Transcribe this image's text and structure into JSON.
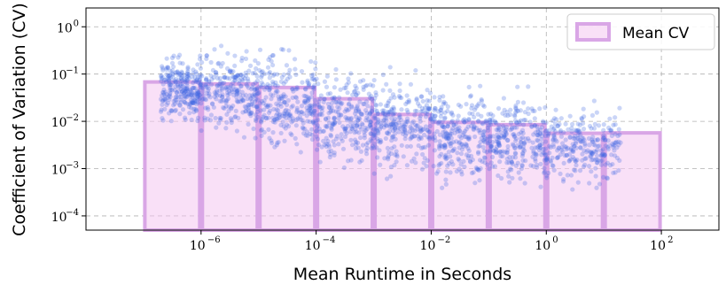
{
  "chart_data": {
    "type": "scatter",
    "xlabel": "Mean Runtime in Seconds",
    "ylabel": "Coefficient of Variation (CV)",
    "xscale": "log",
    "yscale": "log",
    "xlim": [
      1e-08,
      1000.0
    ],
    "ylim": [
      5e-05,
      2.5
    ],
    "x_ticks": [
      {
        "value": 1e-06,
        "base": "10",
        "exp": "−6"
      },
      {
        "value": 0.0001,
        "base": "10",
        "exp": "−4"
      },
      {
        "value": 0.01,
        "base": "10",
        "exp": "−2"
      },
      {
        "value": 1,
        "base": "10",
        "exp": "0"
      },
      {
        "value": 100,
        "base": "10",
        "exp": "2"
      }
    ],
    "y_ticks": [
      {
        "value": 0.0001,
        "base": "10",
        "exp": "−4"
      },
      {
        "value": 0.001,
        "base": "10",
        "exp": "−3"
      },
      {
        "value": 0.01,
        "base": "10",
        "exp": "−2"
      },
      {
        "value": 0.1,
        "base": "10",
        "exp": "−1"
      },
      {
        "value": 1,
        "base": "10",
        "exp": "0"
      }
    ],
    "grid": true,
    "legend_position": "top-right",
    "series": [
      {
        "name": "Mean CV",
        "type": "bar",
        "color": "#f4c6f1",
        "edge_color": "#d9a6e6",
        "bins": [
          {
            "x0": 1e-07,
            "x1": 1e-06,
            "value": 0.068
          },
          {
            "x0": 1e-06,
            "x1": 1e-05,
            "value": 0.062
          },
          {
            "x0": 1e-05,
            "x1": 0.0001,
            "value": 0.052
          },
          {
            "x0": 0.0001,
            "x1": 0.001,
            "value": 0.03
          },
          {
            "x0": 0.001,
            "x1": 0.01,
            "value": 0.014
          },
          {
            "x0": 0.01,
            "x1": 0.1,
            "value": 0.0095
          },
          {
            "x0": 0.1,
            "x1": 1,
            "value": 0.0085
          },
          {
            "x0": 1,
            "x1": 10,
            "value": 0.0056
          },
          {
            "x0": 10,
            "x1": 100,
            "value": 0.0057
          }
        ]
      },
      {
        "name": "",
        "type": "scatter",
        "color": "#4169e1",
        "point_clusters": [
          {
            "x_range": [
              2e-07,
              1e-06
            ],
            "cv_center": 0.05,
            "cv_spread_decades": 0.6
          },
          {
            "x_range": [
              1e-06,
              1e-05
            ],
            "cv_center": 0.04,
            "cv_spread_decades": 0.75
          },
          {
            "x_range": [
              1e-05,
              0.0001
            ],
            "cv_center": 0.025,
            "cv_spread_decades": 0.9
          },
          {
            "x_range": [
              0.0001,
              0.001
            ],
            "cv_center": 0.012,
            "cv_spread_decades": 0.9
          },
          {
            "x_range": [
              0.001,
              0.01
            ],
            "cv_center": 0.008,
            "cv_spread_decades": 0.85
          },
          {
            "x_range": [
              0.01,
              0.1
            ],
            "cv_center": 0.005,
            "cv_spread_decades": 0.85
          },
          {
            "x_range": [
              0.1,
              1
            ],
            "cv_center": 0.004,
            "cv_spread_decades": 0.8
          },
          {
            "x_range": [
              1,
              20
            ],
            "cv_center": 0.003,
            "cv_spread_decades": 0.7
          }
        ]
      }
    ]
  }
}
